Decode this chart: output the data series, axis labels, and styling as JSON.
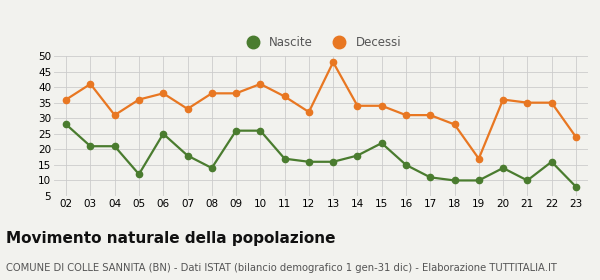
{
  "years": [
    2,
    3,
    4,
    5,
    6,
    7,
    8,
    9,
    10,
    11,
    12,
    13,
    14,
    15,
    16,
    17,
    18,
    19,
    20,
    21,
    22,
    23
  ],
  "nascite": [
    28,
    21,
    21,
    12,
    25,
    18,
    14,
    26,
    26,
    17,
    16,
    16,
    18,
    22,
    15,
    11,
    10,
    10,
    14,
    10,
    16,
    8
  ],
  "decessi": [
    36,
    41,
    31,
    36,
    38,
    33,
    38,
    38,
    41,
    37,
    32,
    48,
    34,
    34,
    31,
    31,
    28,
    17,
    36,
    35,
    35,
    24
  ],
  "nascite_color": "#4a7c2f",
  "decessi_color": "#e87722",
  "background_color": "#f2f2ee",
  "grid_color": "#cccccc",
  "ylim": [
    5,
    50
  ],
  "yticks": [
    5,
    10,
    15,
    20,
    25,
    30,
    35,
    40,
    45,
    50
  ],
  "title": "Movimento naturale della popolazione",
  "subtitle": "COMUNE DI COLLE SANNITA (BN) - Dati ISTAT (bilancio demografico 1 gen-31 dic) - Elaborazione TUTTITALIA.IT",
  "legend_nascite": "Nascite",
  "legend_decessi": "Decessi",
  "title_fontsize": 11,
  "subtitle_fontsize": 7.2,
  "marker_size": 4.5,
  "line_width": 1.6
}
